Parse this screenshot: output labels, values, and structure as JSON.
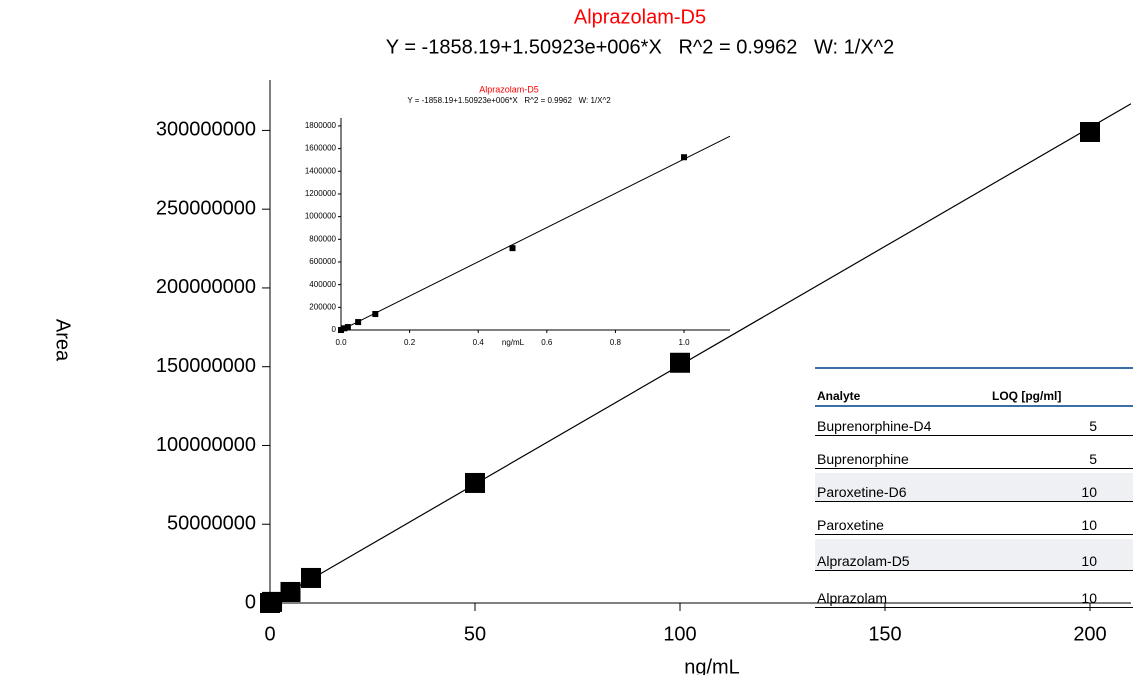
{
  "chart_data": [
    {
      "type": "scatter",
      "title": "Alprazolam-D5",
      "title_color": "#ff0000",
      "subtitle": "Y = -1858.19+1.50923e+006*X   R^2 = 0.9962   W: 1/X^2",
      "x_label": "ng/mL",
      "y_label": "Area",
      "x": [
        0,
        0.5,
        5,
        10,
        50,
        100,
        200
      ],
      "values": [
        0,
        700000,
        7000000,
        15900000,
        76200000,
        152500000,
        299000000
      ],
      "color": "#000000",
      "fit_line": {
        "x": [
          0,
          210
        ],
        "values": [
          -1858.19,
          316936441.8
        ],
        "color": "#000000"
      },
      "xlim": [
        0,
        210
      ],
      "ylim": [
        0,
        332000000
      ],
      "xticks": [
        0,
        50,
        100,
        150,
        200
      ],
      "yticks": [
        0,
        50000000,
        100000000,
        150000000,
        200000000,
        250000000,
        300000000
      ]
    },
    {
      "type": "scatter",
      "title": "Alprazolam-D5",
      "title_color": "#ff0000",
      "subtitle": "Y = -1858.19+1.50923e+006*X   R^2 = 0.9962   W: 1/X^2",
      "x_label": "ng/mL",
      "x": [
        0,
        0.01,
        0.02,
        0.05,
        0.1,
        0.5,
        1.0
      ],
      "values": [
        0,
        15000,
        26000,
        70000,
        141000,
        722000,
        1524000
      ],
      "color": "#000000",
      "fit_line": {
        "x": [
          0,
          1.134
        ],
        "values": [
          -1858.19,
          1709588.6
        ],
        "color": "#000000"
      },
      "xlim": [
        0,
        1.134
      ],
      "ylim": [
        0,
        1870000
      ],
      "xticks": [
        {
          "value": 0,
          "label": "0.0"
        },
        0.2,
        0.4,
        0.6,
        0.8,
        {
          "value": 1,
          "label": "1.0"
        }
      ],
      "yticks": [
        0,
        200000,
        400000,
        600000,
        800000,
        1000000,
        1200000,
        1400000,
        1600000,
        1800000
      ]
    }
  ],
  "table": {
    "headers": [
      "Analyte",
      "LOQ [pg/ml]"
    ],
    "rows": [
      [
        "Buprenorphine-D4",
        5
      ],
      [
        "Buprenorphine",
        5
      ],
      [
        "Paroxetine-D6",
        10
      ],
      [
        "Paroxetine",
        10
      ],
      [
        "Alprazolam-D5",
        10
      ],
      [
        "Alprazolam",
        10
      ]
    ]
  }
}
